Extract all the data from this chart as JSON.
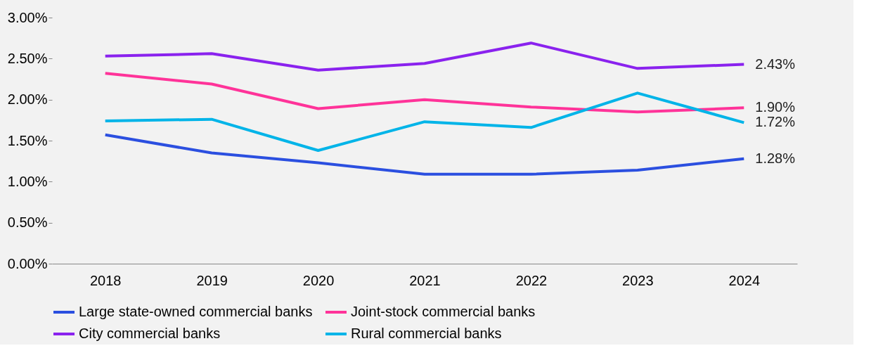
{
  "chart_data": {
    "type": "line",
    "categories": [
      "2018",
      "2019",
      "2020",
      "2021",
      "2022",
      "2023",
      "2024"
    ],
    "series": [
      {
        "name": "Large state-owned commercial banks",
        "color": "#2b4fe0",
        "values": [
          1.57,
          1.35,
          1.23,
          1.09,
          1.09,
          1.14,
          1.28
        ],
        "value_labels": [
          null,
          null,
          null,
          null,
          null,
          null,
          "1.28%"
        ]
      },
      {
        "name": "Joint-stock commercial banks",
        "color": "#ff3399",
        "values": [
          2.32,
          2.19,
          1.89,
          2.0,
          1.91,
          1.85,
          1.9
        ],
        "value_labels": [
          null,
          null,
          null,
          null,
          null,
          null,
          "1.90%"
        ]
      },
      {
        "name": "City commercial banks",
        "color": "#8a22ee",
        "values": [
          2.53,
          2.56,
          2.36,
          2.44,
          2.69,
          2.38,
          2.43
        ],
        "value_labels": [
          null,
          null,
          null,
          null,
          null,
          null,
          "2.43%"
        ]
      },
      {
        "name": "Rural commercial banks",
        "color": "#00b4e8",
        "values": [
          1.74,
          1.76,
          1.38,
          1.73,
          1.66,
          2.08,
          1.72
        ],
        "value_labels": [
          null,
          null,
          null,
          null,
          null,
          null,
          "1.72%"
        ]
      }
    ],
    "ylim": [
      0,
      3
    ],
    "yticks": [
      {
        "value": 0,
        "label": "0.00%"
      },
      {
        "value": 0.5,
        "label": "0.50%"
      },
      {
        "value": 1,
        "label": "1.00%"
      },
      {
        "value": 1.5,
        "label": "1.50%"
      },
      {
        "value": 2,
        "label": "2.00%"
      },
      {
        "value": 2.5,
        "label": "2.50%"
      },
      {
        "value": 3,
        "label": "3.00%"
      }
    ],
    "legend": "bottom",
    "grid": false,
    "marker": "none",
    "line_style": "solid"
  }
}
